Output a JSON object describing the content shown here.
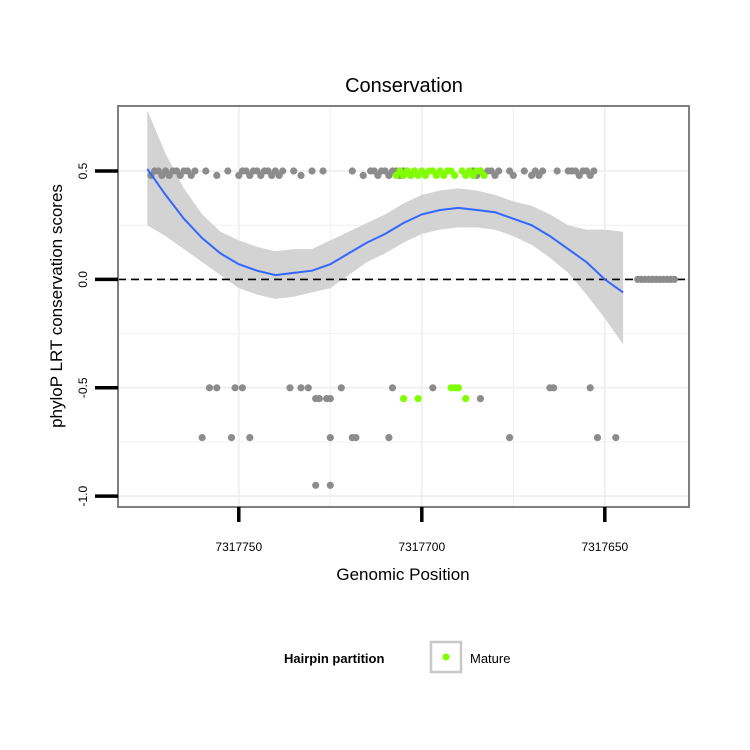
{
  "chart_data": {
    "type": "scatter",
    "title": "Conservation",
    "xlabel": "Genomic Position",
    "ylabel": "phyloP LRT conservation scores",
    "xlim": [
      7317783,
      7317627
    ],
    "ylim": [
      -1.05,
      0.8
    ],
    "x_reversed": true,
    "x_ticks": [
      7317750,
      7317700,
      7317650
    ],
    "x_tick_labels": [
      "7317750",
      "7317700",
      "7317650"
    ],
    "y_ticks": [
      -1.0,
      -0.5,
      0.0,
      0.5
    ],
    "y_tick_labels": [
      "-1.0",
      "-0.5",
      "0.0",
      "0.5"
    ],
    "reference_line": {
      "y": 0,
      "style": "dashed"
    },
    "legend": {
      "title": "Hairpin partition",
      "entries": [
        {
          "label": "Mature",
          "color": "#7FFF00"
        }
      ],
      "position": "bottom"
    },
    "colors": {
      "other": "#8c8c8c",
      "mature": "#7FFF00",
      "smooth": "#3366FF",
      "ribbon": "#d3d3d3",
      "panel_border": "#7f7f7f",
      "grid": "#f0f0f0"
    },
    "series": [
      {
        "name": "Other",
        "points": [
          [
            7317774,
            0.48
          ],
          [
            7317773,
            0.5
          ],
          [
            7317772,
            0.5
          ],
          [
            7317771,
            0.48
          ],
          [
            7317770,
            0.5
          ],
          [
            7317769,
            0.48
          ],
          [
            7317768,
            0.5
          ],
          [
            7317767,
            0.5
          ],
          [
            7317766,
            0.48
          ],
          [
            7317765,
            0.5
          ],
          [
            7317764,
            0.5
          ],
          [
            7317763,
            0.48
          ],
          [
            7317762,
            0.5
          ],
          [
            7317759,
            0.5
          ],
          [
            7317756,
            0.48
          ],
          [
            7317753,
            0.5
          ],
          [
            7317750,
            0.48
          ],
          [
            7317749,
            0.5
          ],
          [
            7317748,
            0.5
          ],
          [
            7317747,
            0.48
          ],
          [
            7317746,
            0.5
          ],
          [
            7317745,
            0.5
          ],
          [
            7317744,
            0.48
          ],
          [
            7317743,
            0.5
          ],
          [
            7317742,
            0.5
          ],
          [
            7317741,
            0.48
          ],
          [
            7317740,
            0.5
          ],
          [
            7317739,
            0.48
          ],
          [
            7317738,
            0.5
          ],
          [
            7317735,
            0.5
          ],
          [
            7317733,
            0.48
          ],
          [
            7317730,
            0.5
          ],
          [
            7317727,
            0.5
          ],
          [
            7317719,
            0.5
          ],
          [
            7317716,
            0.48
          ],
          [
            7317714,
            0.5
          ],
          [
            7317713,
            0.5
          ],
          [
            7317712,
            0.48
          ],
          [
            7317711,
            0.5
          ],
          [
            7317710,
            0.5
          ],
          [
            7317709,
            0.48
          ],
          [
            7317708,
            0.5
          ],
          [
            7317707,
            0.5
          ],
          [
            7317706,
            0.48
          ],
          [
            7317705,
            0.5
          ],
          [
            7317704,
            0.5
          ],
          [
            7317703,
            0.48
          ],
          [
            7317702,
            0.5
          ],
          [
            7317686,
            0.5
          ],
          [
            7317685,
            0.48
          ],
          [
            7317684,
            0.5
          ],
          [
            7317683,
            0.48
          ],
          [
            7317682,
            0.5
          ],
          [
            7317681,
            0.5
          ],
          [
            7317680,
            0.48
          ],
          [
            7317679,
            0.5
          ],
          [
            7317676,
            0.5
          ],
          [
            7317675,
            0.48
          ],
          [
            7317672,
            0.5
          ],
          [
            7317670,
            0.48
          ],
          [
            7317669,
            0.5
          ],
          [
            7317668,
            0.48
          ],
          [
            7317667,
            0.5
          ],
          [
            7317663,
            0.5
          ],
          [
            7317660,
            0.5
          ],
          [
            7317659,
            0.5
          ],
          [
            7317658,
            0.5
          ],
          [
            7317657,
            0.48
          ],
          [
            7317656,
            0.5
          ],
          [
            7317655,
            0.5
          ],
          [
            7317654,
            0.48
          ],
          [
            7317653,
            0.5
          ],
          [
            7317641,
            0.0
          ],
          [
            7317640,
            0.0
          ],
          [
            7317639,
            0.0
          ],
          [
            7317638,
            0.0
          ],
          [
            7317637,
            0.0
          ],
          [
            7317636,
            0.0
          ],
          [
            7317635,
            0.0
          ],
          [
            7317634,
            0.0
          ],
          [
            7317633,
            0.0
          ],
          [
            7317632,
            0.0
          ],
          [
            7317631,
            0.0
          ],
          [
            7317758,
            -0.5
          ],
          [
            7317756,
            -0.5
          ],
          [
            7317751,
            -0.5
          ],
          [
            7317749,
            -0.5
          ],
          [
            7317736,
            -0.5
          ],
          [
            7317733,
            -0.5
          ],
          [
            7317731,
            -0.5
          ],
          [
            7317722,
            -0.5
          ],
          [
            7317708,
            -0.5
          ],
          [
            7317697,
            -0.5
          ],
          [
            7317665,
            -0.5
          ],
          [
            7317664,
            -0.5
          ],
          [
            7317654,
            -0.5
          ],
          [
            7317729,
            -0.55
          ],
          [
            7317728,
            -0.55
          ],
          [
            7317726,
            -0.55
          ],
          [
            7317725,
            -0.55
          ],
          [
            7317684,
            -0.55
          ],
          [
            7317760,
            -0.73
          ],
          [
            7317752,
            -0.73
          ],
          [
            7317747,
            -0.73
          ],
          [
            7317725,
            -0.73
          ],
          [
            7317719,
            -0.73
          ],
          [
            7317718,
            -0.73
          ],
          [
            7317709,
            -0.73
          ],
          [
            7317676,
            -0.73
          ],
          [
            7317652,
            -0.73
          ],
          [
            7317647,
            -0.73
          ],
          [
            7317729,
            -0.95
          ],
          [
            7317725,
            -0.95
          ]
        ]
      },
      {
        "name": "Mature",
        "points": [
          [
            7317707,
            0.48
          ],
          [
            7317706,
            0.5
          ],
          [
            7317705,
            0.48
          ],
          [
            7317704,
            0.5
          ],
          [
            7317703,
            0.48
          ],
          [
            7317702,
            0.5
          ],
          [
            7317701,
            0.48
          ],
          [
            7317700,
            0.5
          ],
          [
            7317699,
            0.48
          ],
          [
            7317698,
            0.5
          ],
          [
            7317697,
            0.5
          ],
          [
            7317696,
            0.48
          ],
          [
            7317695,
            0.5
          ],
          [
            7317694,
            0.48
          ],
          [
            7317693,
            0.5
          ],
          [
            7317692,
            0.5
          ],
          [
            7317691,
            0.48
          ],
          [
            7317689,
            0.5
          ],
          [
            7317688,
            0.48
          ],
          [
            7317687,
            0.5
          ],
          [
            7317686,
            0.48
          ],
          [
            7317685,
            0.5
          ],
          [
            7317684,
            0.5
          ],
          [
            7317683,
            0.48
          ],
          [
            7317692,
            -0.5
          ],
          [
            7317691,
            -0.5
          ],
          [
            7317690,
            -0.5
          ],
          [
            7317705,
            -0.55
          ],
          [
            7317701,
            -0.55
          ],
          [
            7317688,
            -0.55
          ]
        ]
      }
    ],
    "smooth": {
      "method": "loess",
      "points": [
        [
          7317775,
          0.51,
          0.25,
          0.78
        ],
        [
          7317770,
          0.39,
          0.2,
          0.58
        ],
        [
          7317765,
          0.28,
          0.14,
          0.42
        ],
        [
          7317760,
          0.19,
          0.08,
          0.3
        ],
        [
          7317755,
          0.12,
          0.02,
          0.22
        ],
        [
          7317750,
          0.07,
          -0.04,
          0.18
        ],
        [
          7317745,
          0.04,
          -0.07,
          0.15
        ],
        [
          7317740,
          0.02,
          -0.09,
          0.13
        ],
        [
          7317735,
          0.03,
          -0.08,
          0.14
        ],
        [
          7317730,
          0.04,
          -0.06,
          0.14
        ],
        [
          7317725,
          0.07,
          -0.04,
          0.18
        ],
        [
          7317720,
          0.12,
          0.02,
          0.22
        ],
        [
          7317715,
          0.17,
          0.08,
          0.26
        ],
        [
          7317710,
          0.21,
          0.12,
          0.3
        ],
        [
          7317705,
          0.26,
          0.17,
          0.35
        ],
        [
          7317700,
          0.3,
          0.21,
          0.39
        ],
        [
          7317695,
          0.32,
          0.23,
          0.41
        ],
        [
          7317690,
          0.33,
          0.24,
          0.42
        ],
        [
          7317685,
          0.32,
          0.24,
          0.41
        ],
        [
          7317680,
          0.31,
          0.23,
          0.39
        ],
        [
          7317675,
          0.28,
          0.2,
          0.36
        ],
        [
          7317670,
          0.25,
          0.16,
          0.34
        ],
        [
          7317665,
          0.2,
          0.1,
          0.3
        ],
        [
          7317660,
          0.14,
          0.03,
          0.25
        ],
        [
          7317655,
          0.08,
          -0.07,
          0.23
        ],
        [
          7317650,
          0.0,
          -0.18,
          0.23
        ],
        [
          7317645,
          -0.06,
          -0.3,
          0.22
        ]
      ]
    }
  }
}
